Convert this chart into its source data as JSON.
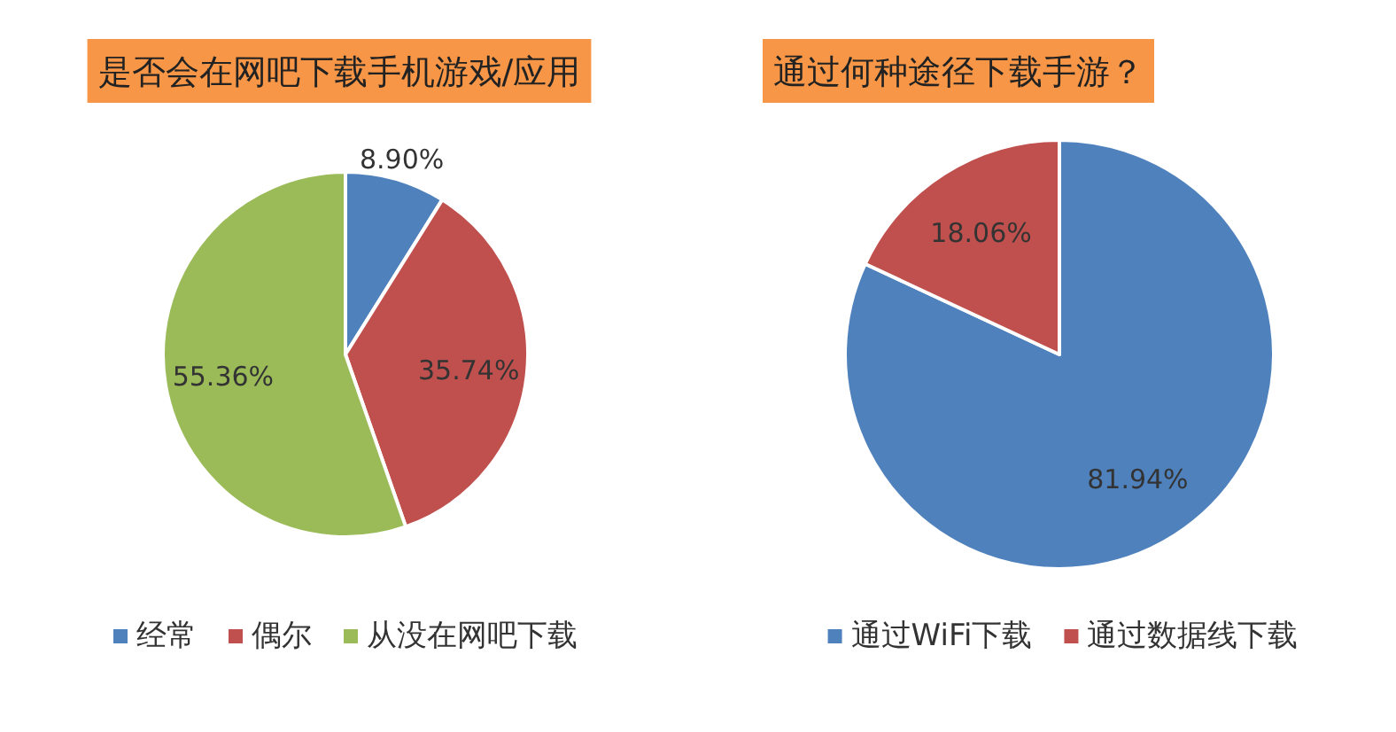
{
  "chart_data": [
    {
      "type": "pie",
      "title": "是否会在网吧下载手机游戏/应用",
      "categories": [
        "经常",
        "偶尔",
        "从没在网吧下载"
      ],
      "values": [
        8.9,
        35.74,
        55.36
      ],
      "value_labels": [
        "8.90%",
        "35.74%",
        "55.36%"
      ],
      "colors": [
        "#4f81bd",
        "#c0504d",
        "#9bbb59"
      ],
      "legend": "bottom"
    },
    {
      "type": "pie",
      "title": "通过何种途径下载手游？",
      "categories": [
        "通过WiFi下载",
        "通过数据线下载"
      ],
      "values": [
        81.94,
        18.06
      ],
      "value_labels": [
        "81.94%",
        "18.06%"
      ],
      "colors": [
        "#4f81bd",
        "#c0504d"
      ],
      "legend": "bottom"
    }
  ]
}
